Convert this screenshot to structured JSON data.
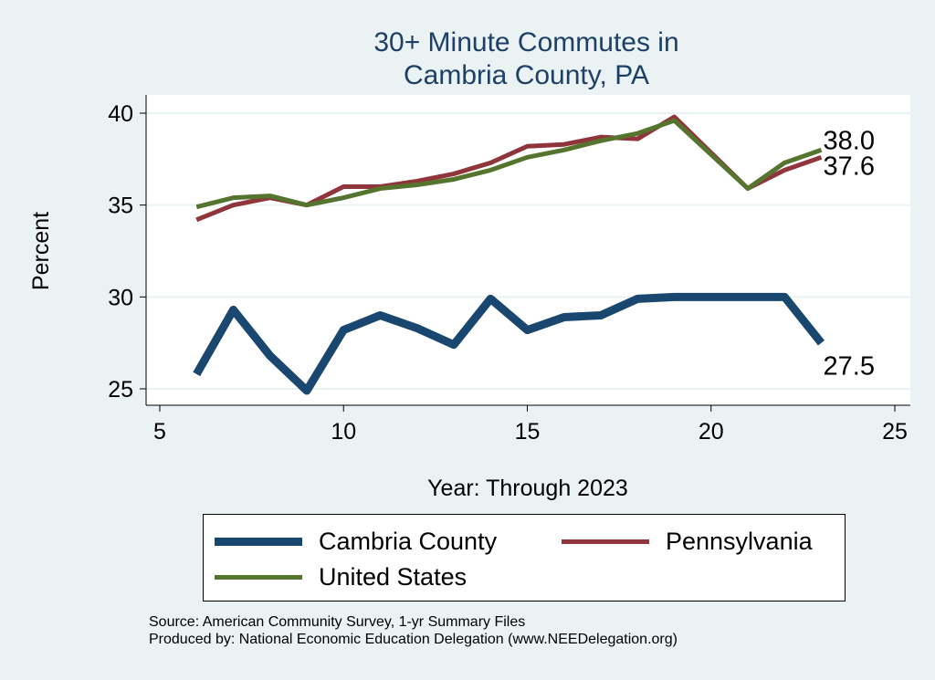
{
  "chart_data": {
    "type": "line",
    "title": [
      "30+ Minute Commutes in",
      "Cambria County, PA"
    ],
    "xlabel": "Year: Through 2023",
    "ylabel": "Percent",
    "xlim": [
      5,
      25
    ],
    "ylim": [
      25,
      40
    ],
    "xticks": [
      5,
      10,
      15,
      20,
      25
    ],
    "yticks": [
      25,
      30,
      35,
      40
    ],
    "grid": true,
    "legend_position": "bottom",
    "x": [
      6,
      7,
      8,
      9,
      10,
      11,
      12,
      13,
      14,
      15,
      16,
      17,
      18,
      19,
      21,
      22,
      23
    ],
    "series": [
      {
        "name": "Cambria County",
        "color": "#1a476f",
        "values": [
          25.8,
          29.3,
          26.8,
          24.9,
          28.2,
          29.0,
          28.3,
          27.4,
          29.9,
          28.2,
          28.9,
          29.0,
          29.9,
          30.0,
          30.0,
          30.0,
          27.5
        ],
        "end_label": "27.5"
      },
      {
        "name": "Pennsylvania",
        "color": "#90353b",
        "values": [
          34.2,
          35.0,
          35.4,
          35.0,
          36.0,
          36.0,
          36.3,
          36.7,
          37.3,
          38.2,
          38.3,
          38.7,
          38.6,
          39.8,
          35.9,
          36.9,
          37.6
        ],
        "end_label": "37.6"
      },
      {
        "name": "United States",
        "color": "#55752f",
        "values": [
          34.9,
          35.4,
          35.5,
          35.0,
          35.4,
          35.9,
          36.1,
          36.4,
          36.9,
          37.6,
          38.0,
          38.5,
          38.9,
          39.6,
          35.9,
          37.3,
          38.0
        ],
        "end_label": "38.0"
      }
    ]
  },
  "notes": [
    "Source: American Community Survey, 1-yr Summary Files",
    "Produced by: National Economic Education Delegation (www.NEEDelegation.org)"
  ]
}
